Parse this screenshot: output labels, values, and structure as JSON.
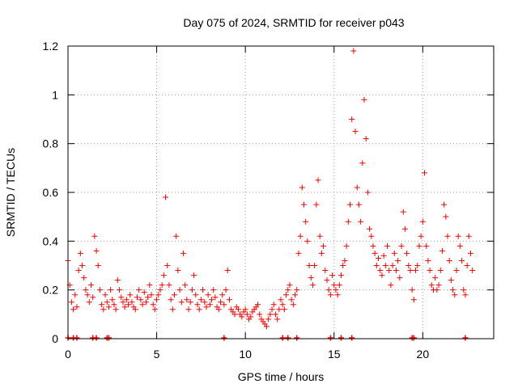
{
  "chart_data": {
    "type": "scatter",
    "title": "Day 075 of 2024, SRMTID for receiver p043",
    "xlabel": "GPS time / hours",
    "ylabel": "SRMTID / TECUs",
    "xlim": [
      0,
      24
    ],
    "ylim": [
      0,
      1.2
    ],
    "xticks": [
      0,
      5,
      10,
      15,
      20
    ],
    "xtick_labels": [
      "0",
      "5",
      "10",
      "15",
      "20"
    ],
    "yticks": [
      0,
      0.2,
      0.4,
      0.6,
      0.8,
      1.0,
      1.2
    ],
    "ytick_labels": [
      "0",
      "0.2",
      "0.4",
      "0.6",
      "0.8",
      "1",
      "1.2"
    ],
    "grid": true,
    "marker": "+",
    "color": "#ff0000",
    "series": [
      {
        "name": "SRMTID",
        "x": [
          0.0,
          0.1,
          0.2,
          0.3,
          0.4,
          0.5,
          0.6,
          0.7,
          0.8,
          0.9,
          1.0,
          1.1,
          1.2,
          1.3,
          1.4,
          1.5,
          1.6,
          1.7,
          1.8,
          1.9,
          2.0,
          2.1,
          2.2,
          2.3,
          2.4,
          2.5,
          2.6,
          2.7,
          2.8,
          2.9,
          3.0,
          3.1,
          3.2,
          3.3,
          3.4,
          3.5,
          3.6,
          3.7,
          3.8,
          3.9,
          4.0,
          4.1,
          4.2,
          4.3,
          4.4,
          4.5,
          4.6,
          4.7,
          4.8,
          4.9,
          5.0,
          5.1,
          5.2,
          5.3,
          5.4,
          5.5,
          5.6,
          5.7,
          5.8,
          5.9,
          6.0,
          6.1,
          6.2,
          6.3,
          6.4,
          6.5,
          6.6,
          6.7,
          6.8,
          6.9,
          7.0,
          7.1,
          7.2,
          7.3,
          7.4,
          7.5,
          7.6,
          7.7,
          7.8,
          7.9,
          8.0,
          8.1,
          8.2,
          8.3,
          8.4,
          8.5,
          8.6,
          8.7,
          8.8,
          8.9,
          9.0,
          9.1,
          9.2,
          9.3,
          9.4,
          9.5,
          9.6,
          9.7,
          9.8,
          9.9,
          10.0,
          10.1,
          10.2,
          10.3,
          10.4,
          10.5,
          10.6,
          10.7,
          10.8,
          10.9,
          11.0,
          11.1,
          11.2,
          11.3,
          11.4,
          11.5,
          11.6,
          11.7,
          11.8,
          11.9,
          12.0,
          12.1,
          12.2,
          12.3,
          12.4,
          12.5,
          12.6,
          12.7,
          12.8,
          12.9,
          13.0,
          13.1,
          13.2,
          13.3,
          13.4,
          13.5,
          13.6,
          13.7,
          13.8,
          13.9,
          14.0,
          14.1,
          14.2,
          14.3,
          14.4,
          14.5,
          14.6,
          14.7,
          14.8,
          14.9,
          15.0,
          15.1,
          15.2,
          15.3,
          15.4,
          15.5,
          15.6,
          15.7,
          15.8,
          15.9,
          16.0,
          16.1,
          16.2,
          16.3,
          16.4,
          16.5,
          16.6,
          16.7,
          16.8,
          16.9,
          17.0,
          17.1,
          17.2,
          17.3,
          17.4,
          17.5,
          17.6,
          17.7,
          17.8,
          17.9,
          18.0,
          18.1,
          18.2,
          18.3,
          18.4,
          18.5,
          18.6,
          18.7,
          18.8,
          18.9,
          19.0,
          19.1,
          19.2,
          19.3,
          19.4,
          19.5,
          19.6,
          19.7,
          19.8,
          19.9,
          20.0,
          20.1,
          20.2,
          20.3,
          20.4,
          20.5,
          20.6,
          20.7,
          20.8,
          20.9,
          21.0,
          21.1,
          21.2,
          21.3,
          21.4,
          21.5,
          21.6,
          21.7,
          21.8,
          21.9,
          22.0,
          22.1,
          22.2,
          22.3,
          22.4,
          22.5,
          22.6,
          22.7,
          22.8
        ],
        "y": [
          0.32,
          0.22,
          0.15,
          0.12,
          0.18,
          0.13,
          0.28,
          0.35,
          0.3,
          0.25,
          0.2,
          0.18,
          0.15,
          0.22,
          0.17,
          0.42,
          0.36,
          0.3,
          0.2,
          0.14,
          0.12,
          0.18,
          0.15,
          0.13,
          0.2,
          0.16,
          0.14,
          0.12,
          0.24,
          0.2,
          0.17,
          0.15,
          0.13,
          0.16,
          0.14,
          0.18,
          0.15,
          0.13,
          0.12,
          0.17,
          0.2,
          0.16,
          0.14,
          0.19,
          0.15,
          0.17,
          0.22,
          0.18,
          0.14,
          0.12,
          0.16,
          0.18,
          0.2,
          0.22,
          0.26,
          0.58,
          0.3,
          0.22,
          0.16,
          0.12,
          0.18,
          0.42,
          0.28,
          0.2,
          0.15,
          0.35,
          0.22,
          0.16,
          0.12,
          0.15,
          0.2,
          0.26,
          0.18,
          0.14,
          0.12,
          0.16,
          0.2,
          0.15,
          0.13,
          0.18,
          0.14,
          0.16,
          0.2,
          0.17,
          0.13,
          0.12,
          0.15,
          0.18,
          0.14,
          0.2,
          0.28,
          0.16,
          0.12,
          0.11,
          0.1,
          0.13,
          0.12,
          0.1,
          0.09,
          0.11,
          0.12,
          0.1,
          0.08,
          0.09,
          0.11,
          0.12,
          0.13,
          0.14,
          0.1,
          0.08,
          0.07,
          0.06,
          0.05,
          0.08,
          0.1,
          0.12,
          0.14,
          0.1,
          0.08,
          0.12,
          0.16,
          0.14,
          0.12,
          0.18,
          0.2,
          0.22,
          0.16,
          0.14,
          0.18,
          0.2,
          0.35,
          0.42,
          0.62,
          0.55,
          0.48,
          0.4,
          0.3,
          0.25,
          0.22,
          0.3,
          0.55,
          0.65,
          0.42,
          0.35,
          0.38,
          0.28,
          0.24,
          0.2,
          0.18,
          0.26,
          0.22,
          0.2,
          0.18,
          0.22,
          0.26,
          0.3,
          0.32,
          0.38,
          0.48,
          0.55,
          0.9,
          1.18,
          0.85,
          0.62,
          0.55,
          0.48,
          0.72,
          0.98,
          0.82,
          0.6,
          0.45,
          0.42,
          0.38,
          0.35,
          0.3,
          0.33,
          0.28,
          0.26,
          0.34,
          0.3,
          0.38,
          0.28,
          0.22,
          0.3,
          0.35,
          0.28,
          0.32,
          0.25,
          0.38,
          0.52,
          0.45,
          0.35,
          0.3,
          0.28,
          0.2,
          0.16,
          0.28,
          0.3,
          0.38,
          0.42,
          0.48,
          0.68,
          0.38,
          0.32,
          0.28,
          0.22,
          0.2,
          0.25,
          0.2,
          0.22,
          0.28,
          0.36,
          0.55,
          0.5,
          0.42,
          0.32,
          0.24,
          0.2,
          0.18,
          0.28,
          0.42,
          0.38,
          0.32,
          0.2,
          0.18,
          0.3,
          0.42,
          0.35,
          0.28
        ]
      }
    ],
    "baseline_markers_x": [
      0.0,
      0.3,
      0.5,
      1.4,
      1.6,
      2.2,
      2.3,
      8.8,
      12.1,
      12.4,
      12.9,
      14.8,
      15.4,
      16.0,
      19.4,
      19.5,
      22.4
    ]
  }
}
